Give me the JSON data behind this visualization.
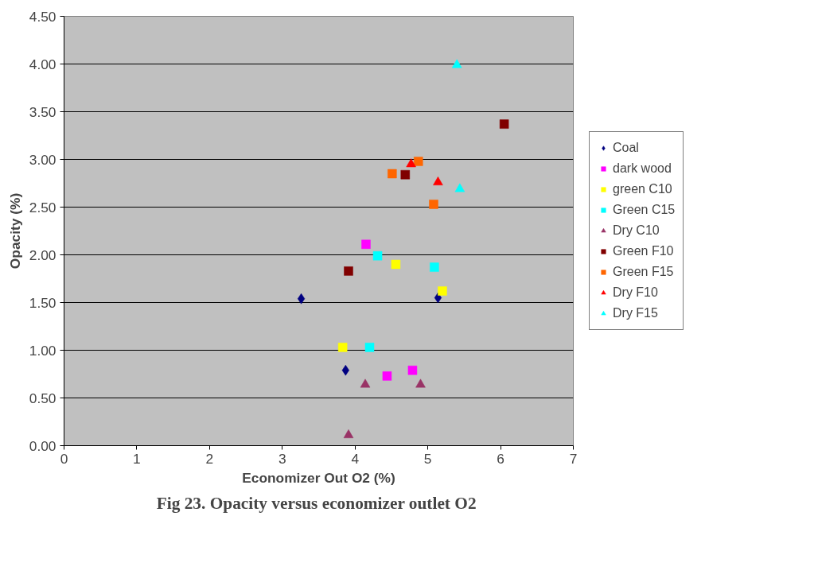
{
  "chart_data": {
    "type": "scatter",
    "xlabel": "Economizer Out O2 (%)",
    "ylabel": "Opacity (%)",
    "xlim": [
      0,
      7
    ],
    "xticks": [
      0,
      1,
      2,
      3,
      4,
      5,
      6,
      7
    ],
    "ylim": [
      0,
      4.5
    ],
    "yticks": [
      {
        "value": 0,
        "label": "0.00"
      },
      {
        "value": 0.5,
        "label": "0.50"
      },
      {
        "value": 1,
        "label": "1.00"
      },
      {
        "value": 1.5,
        "label": "1.50"
      },
      {
        "value": 2,
        "label": "2.00"
      },
      {
        "value": 2.5,
        "label": "2.50"
      },
      {
        "value": 3,
        "label": "3.00"
      },
      {
        "value": 3.5,
        "label": "3.50"
      },
      {
        "value": 4,
        "label": "4.00"
      },
      {
        "value": 4.5,
        "label": "4.50"
      }
    ],
    "grid": "y",
    "legend": "right",
    "annotations": [
      "Fig 23.  Opacity versus economizer outlet O2"
    ],
    "series": [
      {
        "name": "Coal",
        "color": "#000080",
        "marker": "diamond",
        "x": [
          3.26,
          3.87,
          5.14
        ],
        "values": [
          1.54,
          0.79,
          1.55
        ]
      },
      {
        "name": "dark wood",
        "color": "#ff00ff",
        "marker": "square",
        "x": [
          4.15,
          4.44,
          4.79
        ],
        "values": [
          2.11,
          0.73,
          0.79
        ]
      },
      {
        "name": "green C10",
        "color": "#ffff00",
        "marker": "square",
        "x": [
          3.83,
          4.56,
          5.2
        ],
        "values": [
          1.03,
          1.9,
          1.62
        ]
      },
      {
        "name": "Green C15",
        "color": "#00ffff",
        "marker": "square",
        "x": [
          4.31,
          4.2,
          5.09
        ],
        "values": [
          1.99,
          1.03,
          1.87
        ]
      },
      {
        "name": "Dry C10",
        "color": "#993366",
        "marker": "triangle",
        "x": [
          3.91,
          4.14,
          4.9
        ],
        "values": [
          0.11,
          0.64,
          0.64
        ]
      },
      {
        "name": "Green F10",
        "color": "#800000",
        "marker": "square",
        "x": [
          3.91,
          4.69,
          6.05
        ],
        "values": [
          1.83,
          2.84,
          3.37
        ]
      },
      {
        "name": "Green F15",
        "color": "#ff6600",
        "marker": "square",
        "x": [
          4.51,
          4.87,
          5.08
        ],
        "values": [
          2.85,
          2.98,
          2.53
        ]
      },
      {
        "name": "Dry F10",
        "color": "#ff0000",
        "marker": "triangle",
        "x": [
          4.77,
          5.14
        ],
        "values": [
          2.95,
          2.76
        ]
      },
      {
        "name": "Dry F15",
        "color": "#00ffff",
        "marker": "triangle",
        "x": [
          5.4,
          5.44
        ],
        "values": [
          3.99,
          2.69
        ]
      }
    ]
  }
}
